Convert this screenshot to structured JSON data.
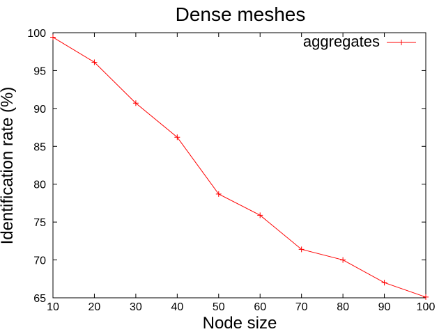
{
  "chart_data": {
    "type": "line",
    "title": "Dense meshes",
    "xlabel": "Node size",
    "ylabel": "Identification rate (%)",
    "xlim": [
      10,
      100
    ],
    "ylim": [
      65,
      100
    ],
    "xticks": [
      10,
      20,
      30,
      40,
      50,
      60,
      70,
      80,
      90,
      100
    ],
    "yticks": [
      65,
      70,
      75,
      80,
      85,
      90,
      95,
      100
    ],
    "grid": false,
    "legend_position": "top-right",
    "series": [
      {
        "name": "aggregates",
        "color": "#ff0000",
        "marker": "plus",
        "x": [
          10,
          20,
          30,
          40,
          50,
          60,
          70,
          80,
          90,
          100
        ],
        "y": [
          99.4,
          96.1,
          90.7,
          86.2,
          78.7,
          75.9,
          71.4,
          70.0,
          67.0,
          65.1
        ]
      }
    ]
  }
}
